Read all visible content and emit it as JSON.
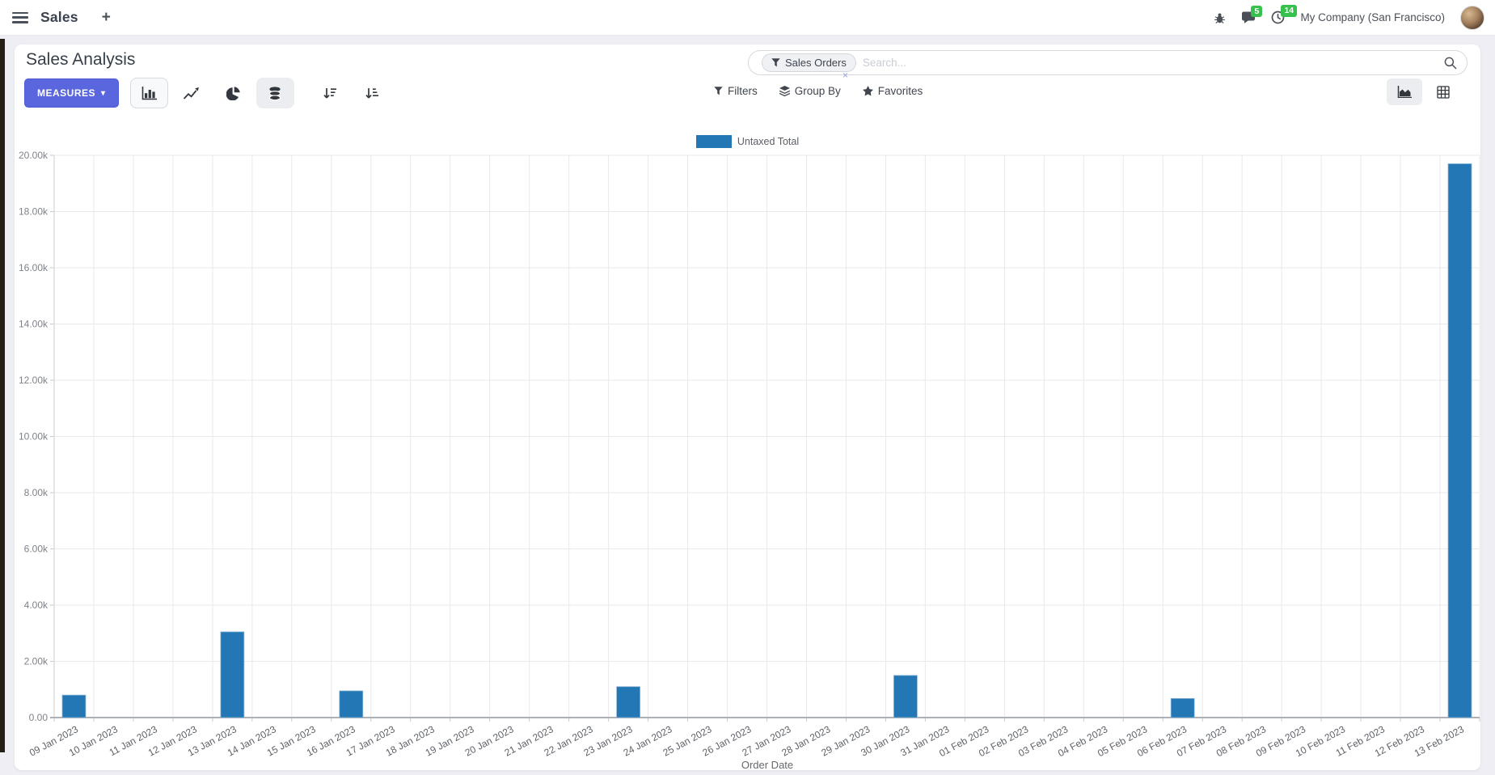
{
  "navbar": {
    "app_name": "Sales",
    "new_page_label": "+",
    "messages_badge": "5",
    "activities_badge": "14",
    "company_name": "My Company (San Francisco)"
  },
  "control_panel": {
    "title": "Sales Analysis",
    "measures_label": "MEASURES",
    "measures_caret": "▾",
    "search": {
      "facet_label": "Sales Orders",
      "facet_remove": "×",
      "placeholder": "Search..."
    },
    "menus": {
      "filters": "Filters",
      "group_by": "Group By",
      "favorites": "Favorites"
    }
  },
  "icons": {
    "hamburger-menu-icon": "three horizontal bars",
    "plus-icon": "+",
    "bug-icon": "debug bug glyph",
    "messages-icon": "chat bubble",
    "activities-icon": "clock",
    "funnel-icon": "filter funnel",
    "layers-icon": "stacked layers",
    "star-icon": "★",
    "search-icon": "magnifier",
    "bar-chart-icon": "vertical bars",
    "line-chart-icon": "zigzag line with arrow",
    "pie-chart-icon": "pie with slice",
    "stacked-icon": "database cylinder",
    "sort-descending-icon": "down arrow with shrinking lines",
    "sort-ascending-icon": "down arrow with growing lines",
    "area-chart-icon": "filled area graph",
    "pivot-grid-icon": "table grid"
  },
  "chart_data": {
    "type": "bar",
    "title": "",
    "xlabel": "Order Date",
    "ylabel": "",
    "ylim": [
      0,
      20000
    ],
    "yticks": [
      "0.00",
      "2.00k",
      "4.00k",
      "6.00k",
      "8.00k",
      "10.00k",
      "12.00k",
      "14.00k",
      "16.00k",
      "18.00k",
      "20.00k"
    ],
    "grid": true,
    "legend_position": "top",
    "categories": [
      "09 Jan 2023",
      "10 Jan 2023",
      "11 Jan 2023",
      "12 Jan 2023",
      "13 Jan 2023",
      "14 Jan 2023",
      "15 Jan 2023",
      "16 Jan 2023",
      "17 Jan 2023",
      "18 Jan 2023",
      "19 Jan 2023",
      "20 Jan 2023",
      "21 Jan 2023",
      "22 Jan 2023",
      "23 Jan 2023",
      "24 Jan 2023",
      "25 Jan 2023",
      "26 Jan 2023",
      "27 Jan 2023",
      "28 Jan 2023",
      "29 Jan 2023",
      "30 Jan 2023",
      "31 Jan 2023",
      "01 Feb 2023",
      "02 Feb 2023",
      "03 Feb 2023",
      "04 Feb 2023",
      "05 Feb 2023",
      "06 Feb 2023",
      "07 Feb 2023",
      "08 Feb 2023",
      "09 Feb 2023",
      "10 Feb 2023",
      "11 Feb 2023",
      "12 Feb 2023",
      "13 Feb 2023"
    ],
    "series": [
      {
        "name": "Untaxed Total",
        "color": "#2277b4",
        "values": [
          800,
          0,
          0,
          0,
          3050,
          0,
          0,
          950,
          0,
          0,
          0,
          0,
          0,
          0,
          1100,
          0,
          0,
          0,
          0,
          0,
          0,
          1500,
          0,
          0,
          0,
          0,
          0,
          0,
          680,
          0,
          0,
          0,
          0,
          0,
          0,
          19700
        ]
      }
    ]
  }
}
